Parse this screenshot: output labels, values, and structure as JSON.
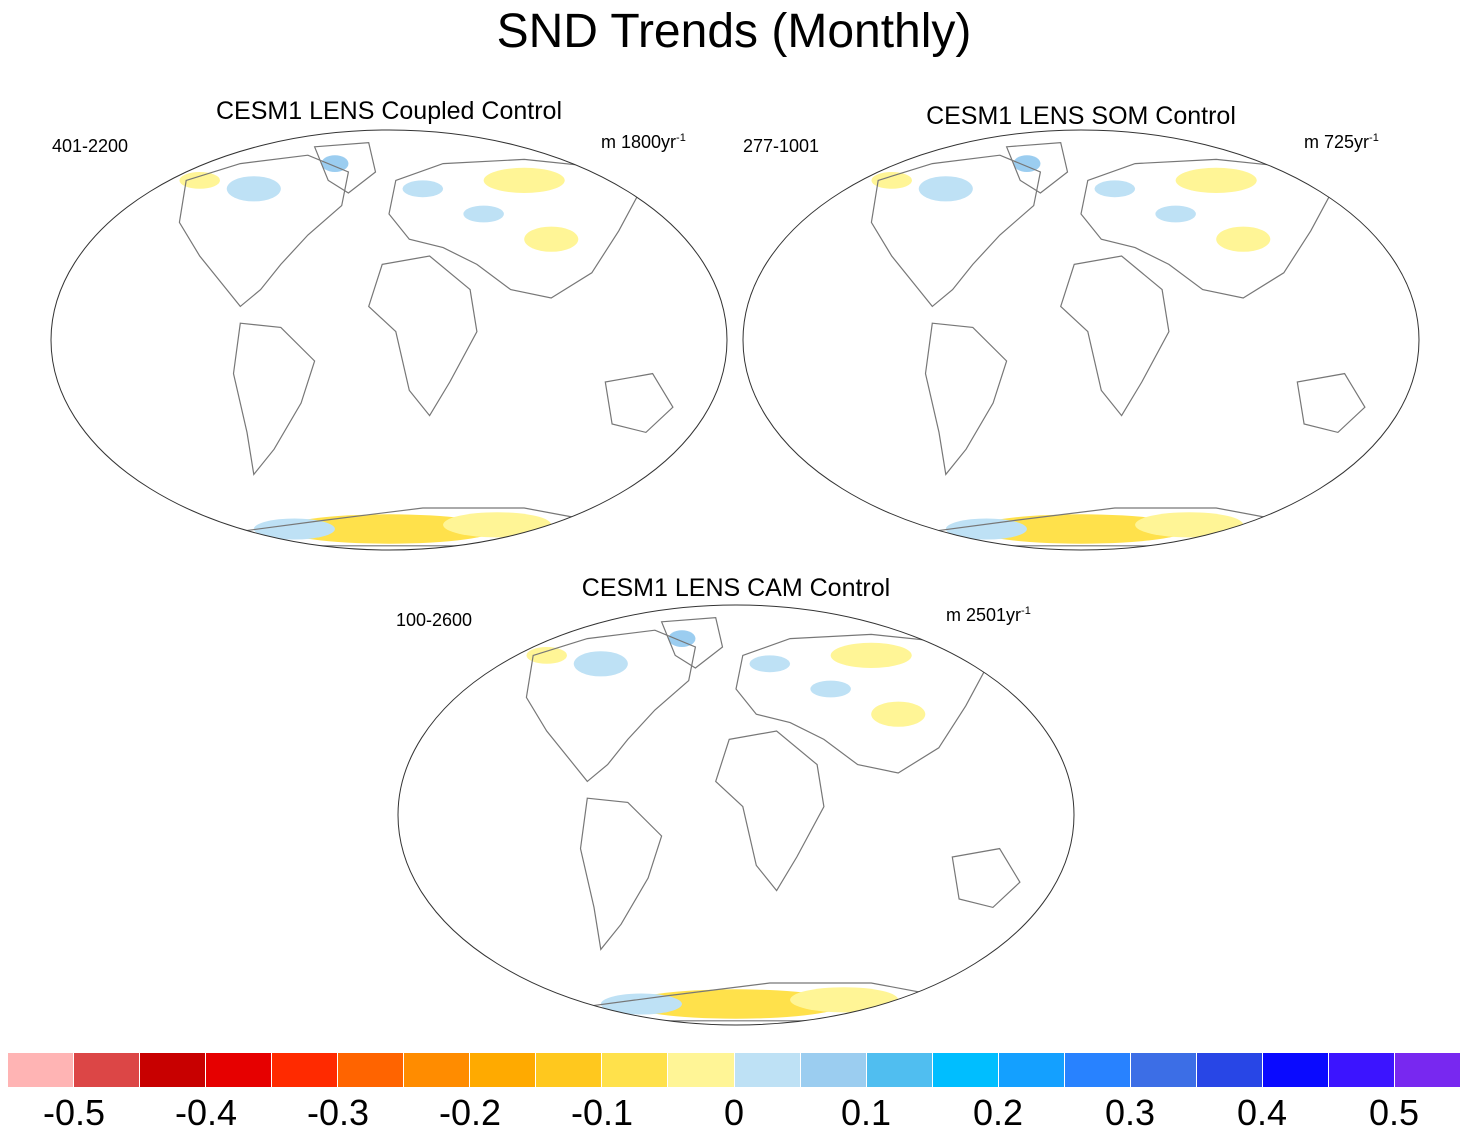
{
  "title": "SND Trends (Monthly)",
  "panels": [
    {
      "title": "CESM1 LENS Coupled Control",
      "range": "401-2200",
      "units_prefix": "m 1800yr",
      "units_sup": "-1"
    },
    {
      "title": "CESM1 LENS SOM Control",
      "range": "277-1001",
      "units_prefix": "m 725yr",
      "units_sup": "-1"
    },
    {
      "title": "CESM1 LENS CAM Control",
      "range": "100-2600",
      "units_prefix": "m 2501yr",
      "units_sup": "-1"
    }
  ],
  "colorbar": {
    "colors": [
      "#ffb4b4",
      "#dc4646",
      "#c80000",
      "#e60000",
      "#ff2a00",
      "#ff6400",
      "#ff8c00",
      "#ffaa00",
      "#ffc81e",
      "#ffe14b",
      "#fff596",
      "#bee1f5",
      "#9bcdf0",
      "#50bef0",
      "#00beff",
      "#14a0ff",
      "#2882ff",
      "#3c6ee6",
      "#2846e6",
      "#0a0aff",
      "#3c14ff",
      "#7828f0"
    ],
    "tick_labels": [
      "-0.5",
      "-0.4",
      "-0.3",
      "-0.2",
      "-0.1",
      "0",
      "0.1",
      "0.2",
      "0.3",
      "0.4",
      "0.5"
    ]
  }
}
